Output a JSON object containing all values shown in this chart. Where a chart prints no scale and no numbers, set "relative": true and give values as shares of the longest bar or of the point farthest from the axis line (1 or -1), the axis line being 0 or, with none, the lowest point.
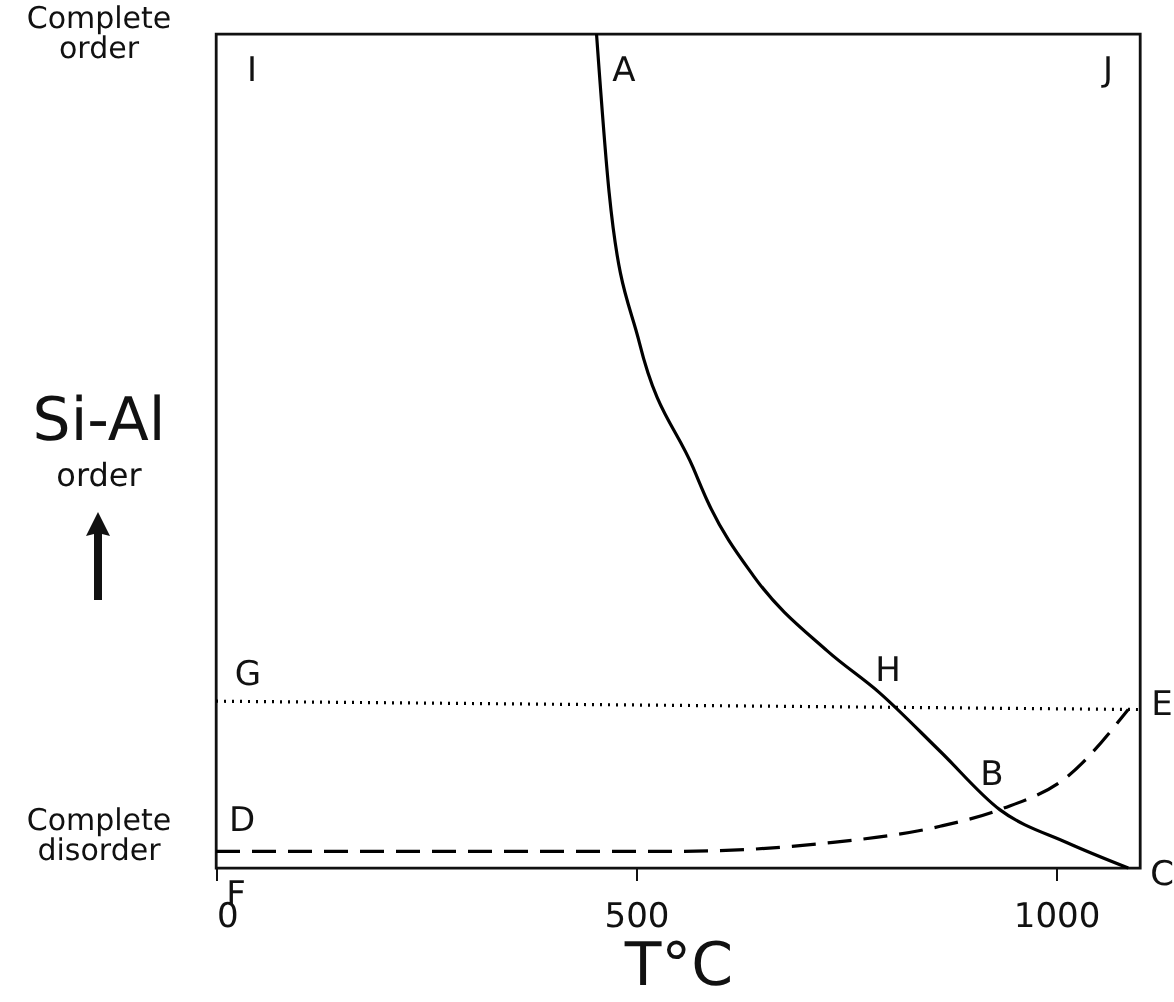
{
  "chart_data": {
    "type": "line",
    "relative": true,
    "xlabel": "T°C",
    "ylabel": "Si-Al order",
    "xlim": [
      0,
      1100
    ],
    "xticks": [
      0,
      500,
      {
        "value": 1000,
        "label": "1000"
      }
    ],
    "grid": false,
    "marker": "none",
    "series": [
      {
        "color": "#000000",
        "line_style": "solid",
        "x": [
          453,
          468,
          504,
          568,
          585,
          640,
          728,
          790,
          862,
          933,
          1014,
          1086
        ],
        "values": [
          1.0,
          0.81,
          0.63,
          0.48,
          0.44,
          0.35,
          0.26,
          0.21,
          0.14,
          0.07,
          0.03,
          0.0
        ]
      },
      {
        "color": "#000000",
        "line_style": "dashed",
        "x": [
          0,
          549,
          728,
          862,
          933,
          1014,
          1086
        ],
        "values": [
          0.02,
          0.02,
          0.03,
          0.05,
          0.07,
          0.11,
          0.19
        ]
      },
      {
        "color": "#000000",
        "line_style": "dotted",
        "x": [
          0,
          1100
        ],
        "values": [
          0.2,
          0.19
        ]
      }
    ],
    "annotations": [
      "Complete order",
      "Complete disorder",
      "I",
      "A",
      "J",
      "G",
      "H",
      "E",
      "B",
      "D",
      "F",
      "C"
    ]
  }
}
